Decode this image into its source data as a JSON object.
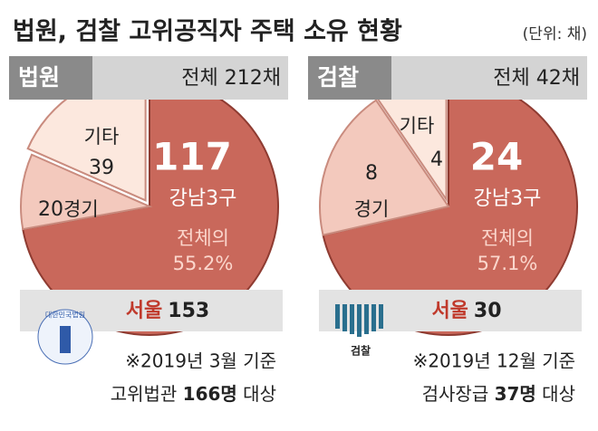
{
  "title": "법원, 검찰 고위공직자 주택 소유 현황",
  "unit": "(단위: 채)",
  "chart_data": [
    {
      "type": "pie",
      "title": "법원",
      "total": "전체 212채",
      "categories": [
        "서울",
        "경기",
        "기타"
      ],
      "values": [
        153,
        20,
        39
      ],
      "colors": [
        "#c9685b",
        "#f3c9bd",
        "#fce8de"
      ],
      "annotations": {
        "highlight": "117",
        "highlight_label": "강남3구",
        "share_label": "전체의",
        "share": "55.2%"
      },
      "logo_text": "대한민국법원",
      "notes": {
        "line1": "※2019년 3월 기준",
        "pre": "고위법관 ",
        "bold": "166명",
        "post": " 대상"
      }
    },
    {
      "type": "pie",
      "title": "검찰",
      "total": "전체 42채",
      "categories": [
        "서울",
        "경기",
        "기타"
      ],
      "values": [
        30,
        8,
        4
      ],
      "colors": [
        "#c9685b",
        "#f3c9bd",
        "#fce8de"
      ],
      "annotations": {
        "highlight": "24",
        "highlight_label": "강남3구",
        "share_label": "전체의",
        "share": "57.1%"
      },
      "logo_text": "검찰",
      "notes": {
        "line1": "※2019년 12월 기준",
        "pre": "검사장급 ",
        "bold": "37명",
        "post": " 대상"
      }
    }
  ]
}
